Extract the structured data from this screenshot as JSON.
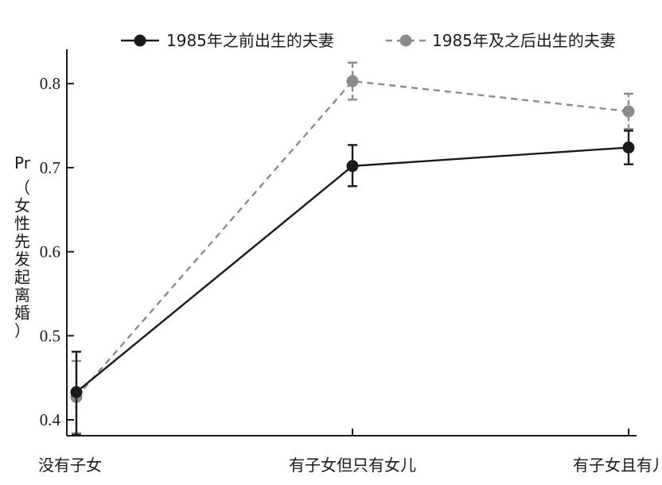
{
  "chart_data": {
    "type": "line",
    "categories": [
      "没有子女",
      "有子女但只有女儿",
      "有子女且有儿子"
    ],
    "ylabel_prefix": "Pr",
    "ylabel_chars": [
      "（",
      "女",
      "性",
      "先",
      "发",
      "起",
      "离",
      "婚",
      "）"
    ],
    "ylim": [
      0.38,
      0.84
    ],
    "yticks": [
      "0.4",
      "0.5",
      "0.6",
      "0.7",
      "0.8"
    ],
    "grid": false,
    "legend_position": "top",
    "series": [
      {
        "name": "1985年之前出生的夫妻",
        "style": "solid",
        "color": "#1a1a1a",
        "values": [
          0.433,
          0.702,
          0.724
        ],
        "err_low": [
          0.382,
          0.678,
          0.704
        ],
        "err_high": [
          0.481,
          0.727,
          0.744
        ]
      },
      {
        "name": "1985年及之后出生的夫妻",
        "style": "dashed",
        "color": "#8a8a8a",
        "values": [
          0.427,
          0.803,
          0.767
        ],
        "err_low": [
          0.384,
          0.781,
          0.746
        ],
        "err_high": [
          0.47,
          0.825,
          0.788
        ]
      }
    ]
  }
}
